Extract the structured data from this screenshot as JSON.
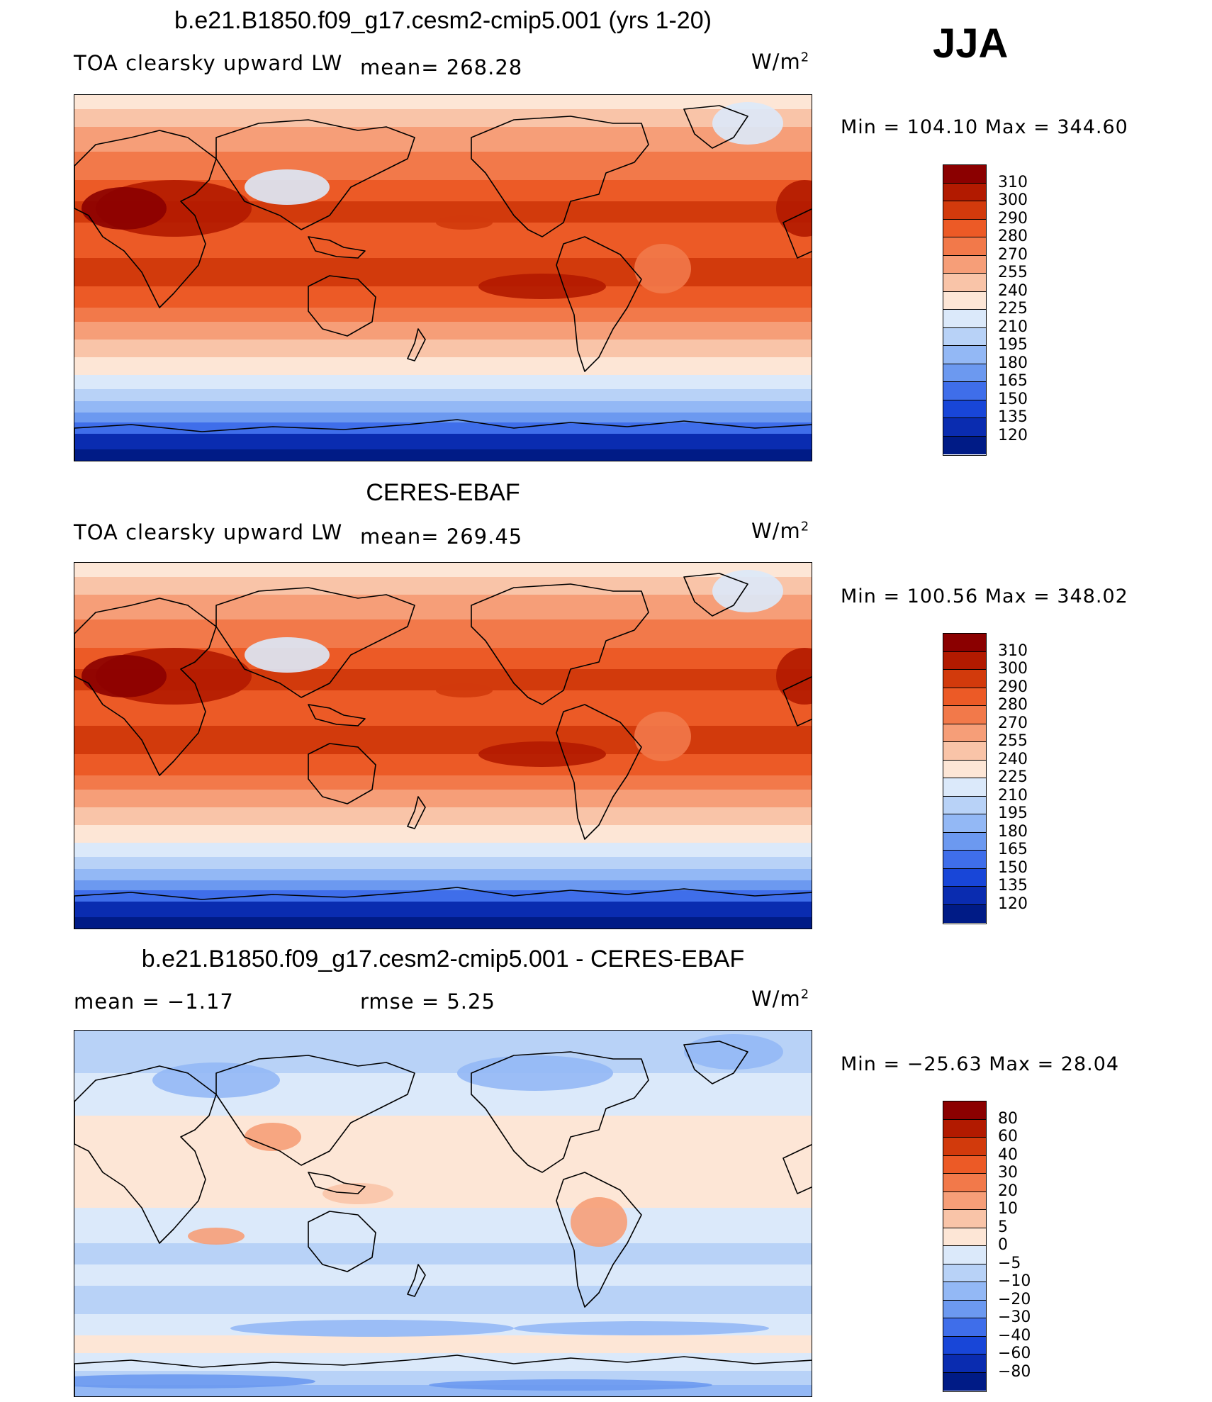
{
  "season": "JJA",
  "panels": [
    {
      "title": "b.e21.B1850.f09_g17.cesm2-cmip5.001 (yrs 1-20)",
      "left_text": "TOA clearsky upward LW",
      "stat_text": "mean= 268.28",
      "units_base": "W/m",
      "units_exp": "2",
      "minmax": "Min = 104.10 Max = 344.60",
      "colorbar": {
        "labels": [
          "310",
          "300",
          "290",
          "280",
          "270",
          "255",
          "240",
          "225",
          "210",
          "195",
          "180",
          "165",
          "150",
          "135",
          "120"
        ],
        "colors": [
          "#8b0000",
          "#b21a00",
          "#d23a0c",
          "#ec5a26",
          "#f2794a",
          "#f69e78",
          "#f9c4a8",
          "#fde6d6",
          "#dbe9fa",
          "#b8d2f7",
          "#93b8f5",
          "#6c99f0",
          "#3f6eea",
          "#1846d8",
          "#0a2cb0",
          "#001b86"
        ]
      },
      "map_mode": "abs"
    },
    {
      "title": "CERES-EBAF",
      "left_text": "TOA clearsky upward LW",
      "stat_text": "mean= 269.45",
      "units_base": "W/m",
      "units_exp": "2",
      "minmax": "Min = 100.56 Max = 348.02",
      "colorbar": {
        "labels": [
          "310",
          "300",
          "290",
          "280",
          "270",
          "255",
          "240",
          "225",
          "210",
          "195",
          "180",
          "165",
          "150",
          "135",
          "120"
        ],
        "colors": [
          "#8b0000",
          "#b21a00",
          "#d23a0c",
          "#ec5a26",
          "#f2794a",
          "#f69e78",
          "#f9c4a8",
          "#fde6d6",
          "#dbe9fa",
          "#b8d2f7",
          "#93b8f5",
          "#6c99f0",
          "#3f6eea",
          "#1846d8",
          "#0a2cb0",
          "#001b86"
        ]
      },
      "map_mode": "abs"
    },
    {
      "title": "b.e21.B1850.f09_g17.cesm2-cmip5.001 - CERES-EBAF",
      "left_text": "mean =   −1.17",
      "stat_text": "rmse =    5.25",
      "units_base": "W/m",
      "units_exp": "2",
      "minmax": "Min = −25.63 Max =  28.04",
      "colorbar": {
        "labels": [
          "80",
          "60",
          "40",
          "30",
          "20",
          "10",
          "5",
          "0",
          "−5",
          "−10",
          "−20",
          "−30",
          "−40",
          "−60",
          "−80"
        ],
        "colors": [
          "#8b0000",
          "#b21a00",
          "#d23a0c",
          "#ec5a26",
          "#f2794a",
          "#f69e78",
          "#f9c4a8",
          "#fde6d6",
          "#dbe9fa",
          "#b8d2f7",
          "#93b8f5",
          "#6c99f0",
          "#3f6eea",
          "#1846d8",
          "#0a2cb0",
          "#001b86"
        ]
      },
      "map_mode": "diff"
    }
  ]
}
